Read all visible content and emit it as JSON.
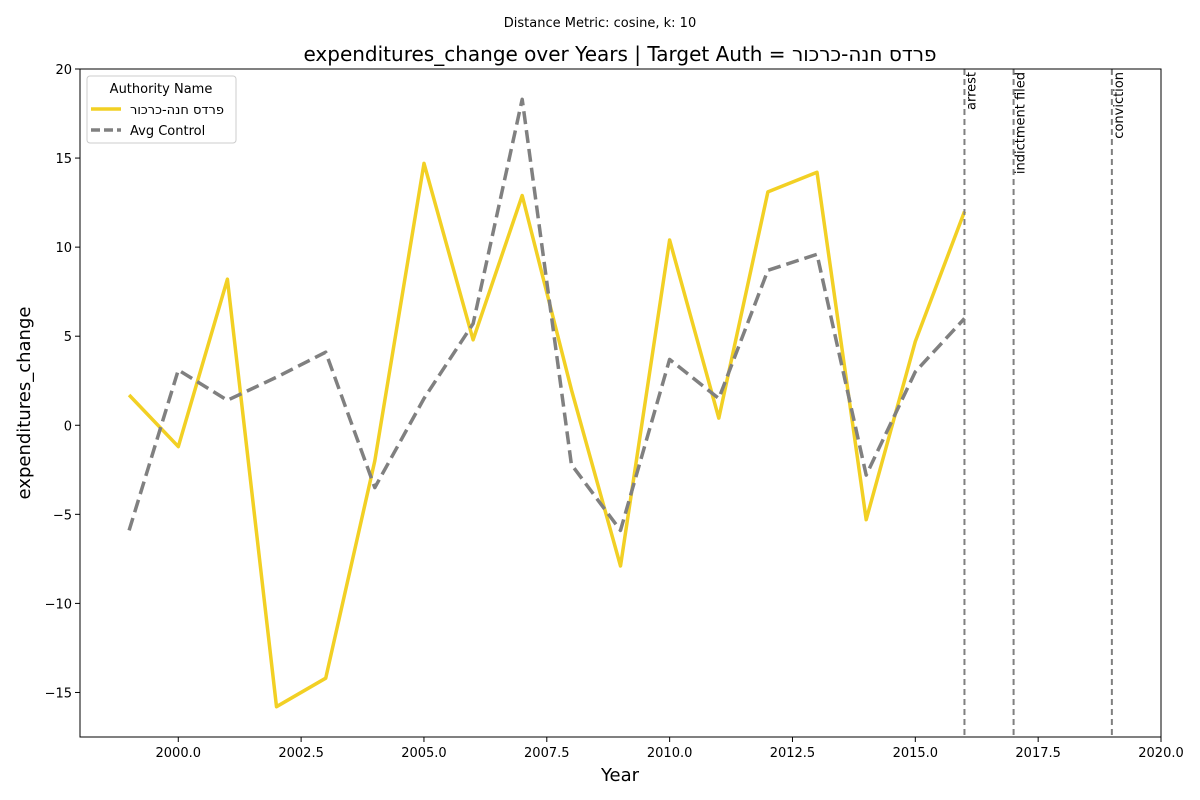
{
  "chart_data": {
    "type": "line",
    "subtitle": "Distance Metric: cosine, k: 10",
    "title": "expenditures_change over Years | Target Auth = פרדס חנה-כרכור",
    "xlabel": "Year",
    "ylabel": "expenditures_change",
    "xlim": [
      1998.0,
      2020.0
    ],
    "ylim": [
      -17.5,
      20.0
    ],
    "xticks": [
      2000.0,
      2002.5,
      2005.0,
      2007.5,
      2010.0,
      2012.5,
      2015.0,
      2017.5,
      2020.0
    ],
    "xtick_labels": [
      "2000.0",
      "2002.5",
      "2005.0",
      "2007.5",
      "2010.0",
      "2012.5",
      "2015.0",
      "2017.5",
      "2020.0"
    ],
    "yticks": [
      -15,
      -10,
      -5,
      0,
      5,
      10,
      15,
      20
    ],
    "ytick_labels": [
      "−15",
      "−10",
      "−5",
      "0",
      "5",
      "10",
      "15",
      "20"
    ],
    "grid": false,
    "legend": {
      "title": "Authority Name",
      "placement": "top-left"
    },
    "x": [
      1999,
      2000,
      2001,
      2002,
      2003,
      2004,
      2005,
      2006,
      2007,
      2008,
      2009,
      2010,
      2011,
      2012,
      2013,
      2014,
      2015,
      2016
    ],
    "series": [
      {
        "name": "פרדס חנה-כרכור",
        "color": "#f2d024",
        "style": "solid",
        "values": [
          1.7,
          -1.2,
          8.2,
          -15.8,
          -14.2,
          -2.0,
          14.7,
          4.8,
          12.9,
          2.0,
          -7.9,
          10.4,
          0.4,
          13.1,
          14.2,
          -5.3,
          4.7,
          12.0
        ]
      },
      {
        "name": "Avg Control",
        "color": "#808080",
        "style": "dashed",
        "values": [
          -5.9,
          3.1,
          1.4,
          2.7,
          4.1,
          -3.5,
          1.5,
          5.7,
          18.3,
          -2.2,
          -5.9,
          3.7,
          1.5,
          8.7,
          9.6,
          -2.8,
          3.0,
          6.0
        ]
      }
    ],
    "events": [
      {
        "x": 2016,
        "label": "arrest"
      },
      {
        "x": 2017,
        "label": "indictment filed"
      },
      {
        "x": 2019,
        "label": "conviction"
      }
    ]
  }
}
